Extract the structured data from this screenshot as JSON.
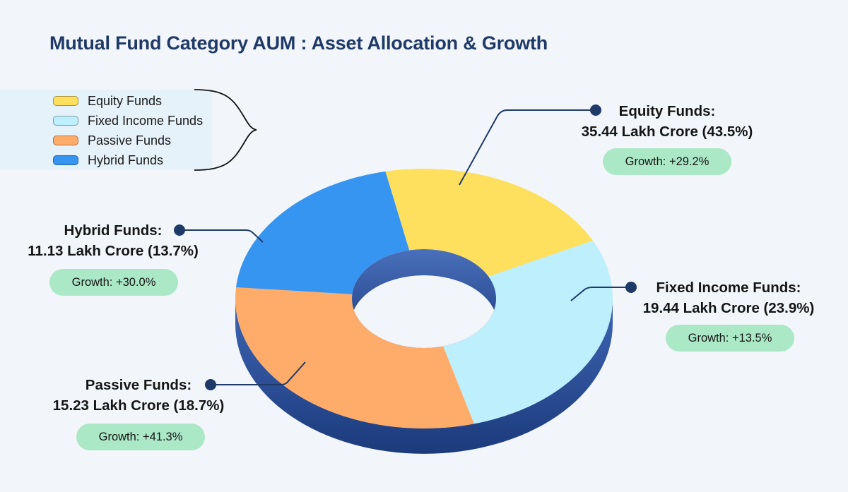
{
  "title": "Mutual Fund Category AUM : Asset Allocation & Growth",
  "legend": [
    {
      "label": "Equity Funds",
      "color": "#ffdf5e"
    },
    {
      "label": "Fixed Income Funds",
      "color": "#bdeffc"
    },
    {
      "label": "Passive Funds",
      "color": "#ffab69"
    },
    {
      "label": "Hybrid Funds",
      "color": "#3795f2"
    }
  ],
  "labels": {
    "equity": {
      "name": "Equity Funds:",
      "value": "35.44 Lakh Crore (43.5%)",
      "growth": "Growth: +29.2%"
    },
    "fixed": {
      "name": "Fixed Income Funds:",
      "value": "19.44 Lakh Crore (23.9%)",
      "growth": "Growth: +13.5%"
    },
    "hybrid": {
      "name": "Hybrid Funds:",
      "value": "11.13 Lakh Crore (13.7%)",
      "growth": "Growth: +30.0%"
    },
    "passive": {
      "name": "Passive Funds:",
      "value": "15.23 Lakh Crore (18.7%)",
      "growth": "Growth: +41.3%"
    }
  },
  "chart_data": {
    "type": "pie",
    "variant": "3d-donut",
    "title": "Mutual Fund Category AUM : Asset Allocation & Growth",
    "categories": [
      "Equity Funds",
      "Fixed Income Funds",
      "Passive Funds",
      "Hybrid Funds"
    ],
    "aum_lakh_crore": [
      35.44,
      19.44,
      15.23,
      11.13
    ],
    "share_percent": [
      43.5,
      23.9,
      18.7,
      13.7
    ],
    "growth_percent": [
      29.2,
      13.5,
      41.3,
      30.0
    ],
    "colors": [
      "#ffdf5e",
      "#bdeffc",
      "#ffab69",
      "#3795f2"
    ],
    "side_color": "#2a4f9a",
    "growth_badge_color": "#abe8c6",
    "legend_position": "top-left"
  }
}
